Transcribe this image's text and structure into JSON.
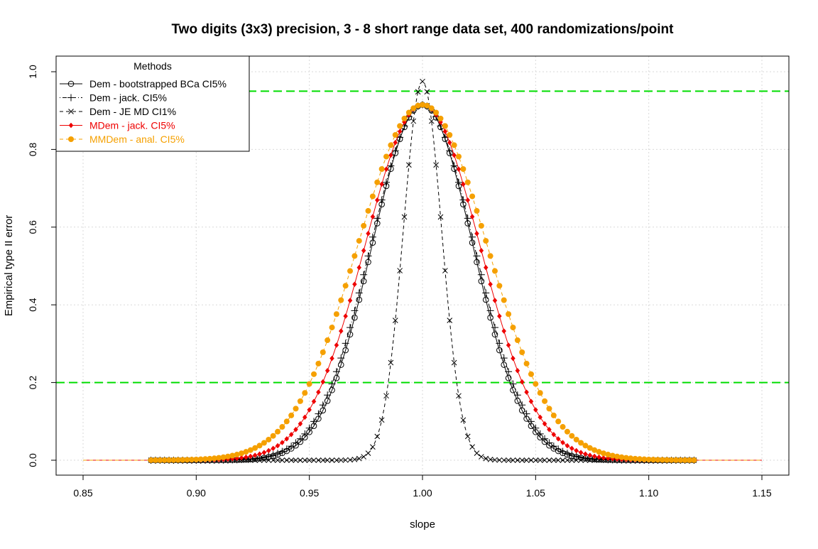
{
  "chart_data": {
    "type": "line",
    "title": "Two digits (3x3) precision, 3 - 8 short range data set, 400 randomizations/point",
    "xlabel": "slope",
    "ylabel": "Empirical type II error",
    "xlim": [
      0.85,
      1.15
    ],
    "ylim": [
      0.0,
      1.0
    ],
    "x_ticks": [
      "0.85",
      "0.90",
      "0.95",
      "1.00",
      "1.05",
      "1.10",
      "1.15"
    ],
    "y_ticks": [
      "0.0",
      "0.2",
      "0.4",
      "0.6",
      "0.8",
      "1.0"
    ],
    "grid": true,
    "legend": {
      "title": "Methods",
      "placement": "top-left"
    },
    "reference_lines": [
      {
        "y": 0.95,
        "color": "#00dd00",
        "style": "dashed"
      },
      {
        "y": 0.2,
        "color": "#00dd00",
        "style": "dashed"
      }
    ],
    "series": [
      {
        "name": "Dem - bootstrapped BCa CI5%",
        "color": "#000000",
        "marker": "circle",
        "line": "solid",
        "center": 1.0,
        "peak": 0.915,
        "sigma": 0.0222,
        "xrange": [
          0.88,
          1.12
        ],
        "curve_xrange": [
          0.85,
          1.15
        ]
      },
      {
        "name": "Dem - jack. CI5%",
        "color": "#000000",
        "marker": "plus",
        "line": "dotdash",
        "center": 1.0,
        "peak": 0.915,
        "sigma": 0.0228,
        "xrange": [
          0.88,
          1.12
        ],
        "curve_xrange": [
          0.85,
          1.15
        ]
      },
      {
        "name": "Dem - JE MD CI1%",
        "color": "#000000",
        "marker": "cross",
        "line": "dashed",
        "center": 1.0,
        "peak": 0.975,
        "sigma": 0.0085,
        "xrange": [
          0.88,
          1.12
        ],
        "curve_xrange": [
          0.88,
          1.12
        ]
      },
      {
        "name": "MDem - jack. CI5%",
        "color": "#ee0000",
        "marker": "diamond",
        "line": "solid",
        "center": 1.0,
        "peak": 0.915,
        "sigma": 0.0253,
        "xrange": [
          0.88,
          1.12
        ],
        "curve_xrange": [
          0.85,
          1.15
        ]
      },
      {
        "name": "MMDem - anal. CI5%",
        "color": "#f5a000",
        "marker": "dot",
        "line": "dashed",
        "center": 1.0,
        "peak": 0.915,
        "sigma": 0.0285,
        "xrange": [
          0.88,
          1.12
        ],
        "curve_xrange": [
          0.85,
          1.15
        ]
      }
    ]
  }
}
